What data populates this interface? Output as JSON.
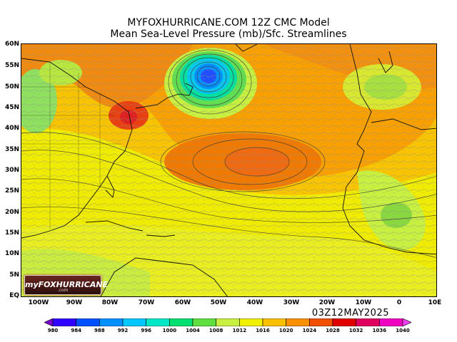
{
  "header": {
    "title": "MYFOXHURRICANE.COM 12Z CMC Model",
    "subtitle": "Mean Sea-Level Pressure (mb)/Sfc. Streamlines"
  },
  "map": {
    "lat_labels": [
      "60N",
      "55N",
      "50N",
      "45N",
      "40N",
      "35N",
      "30N",
      "25N",
      "20N",
      "15N",
      "10N",
      "5N",
      "EQ"
    ],
    "lon_labels": [
      "100W",
      "90W",
      "80W",
      "70W",
      "60W",
      "50W",
      "40W",
      "30W",
      "20W",
      "10W",
      "0",
      "10E"
    ],
    "features": {
      "low_center": "low-pressure-center",
      "subtropical_high": "subtropical-high"
    }
  },
  "valid_time": "03Z12MAY2025",
  "logo": {
    "text": "myFOXHURRICANE",
    "sub": ".com"
  },
  "colorbar": {
    "labels": [
      "980",
      "984",
      "988",
      "992",
      "996",
      "1000",
      "1004",
      "1008",
      "1012",
      "1016",
      "1020",
      "1024",
      "1028",
      "1032",
      "1036",
      "1040"
    ],
    "colors": [
      "#7a00d0",
      "#3000ff",
      "#0050ff",
      "#0090ff",
      "#00c8ff",
      "#00e8c8",
      "#00e070",
      "#60e040",
      "#c8f040",
      "#f0f000",
      "#f8c000",
      "#f89000",
      "#f05000",
      "#e00000",
      "#e00060",
      "#f000c0",
      "#f040f0"
    ]
  }
}
